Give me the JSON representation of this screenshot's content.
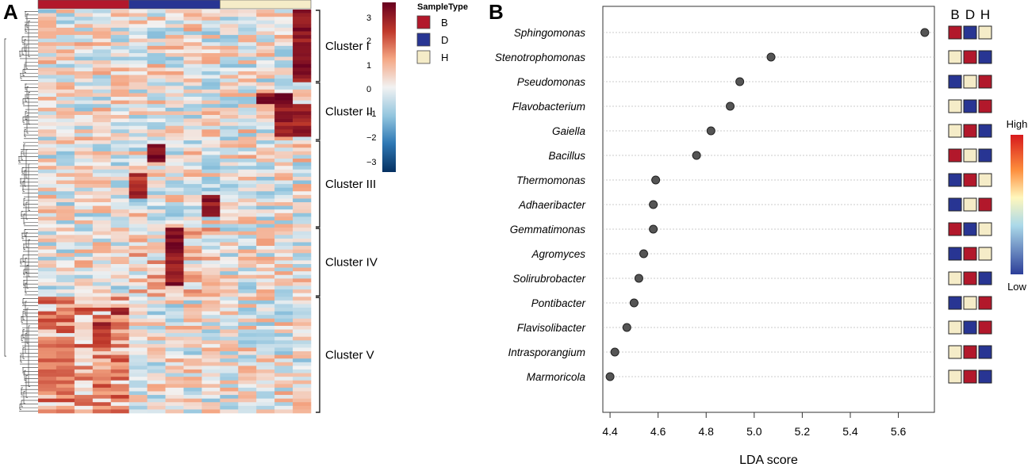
{
  "panels": {
    "a_label": "A",
    "b_label": "B"
  },
  "legend": {
    "title": "SampleType",
    "items": [
      {
        "label": "B",
        "color": "#b2182b"
      },
      {
        "label": "D",
        "color": "#283593"
      },
      {
        "label": "H",
        "color": "#f5ecc8"
      }
    ],
    "scale_ticks": [
      "3",
      "2",
      "1",
      "0",
      "−1",
      "−2",
      "−3"
    ]
  },
  "clusters": [
    "Cluster I",
    "Cluster II",
    "Cluster III",
    "Cluster IV",
    "Cluster V"
  ],
  "heat_scale": {
    "high_label": "High",
    "low_label": "Low"
  },
  "group_header": {
    "labels": [
      "B",
      "D",
      "H"
    ]
  },
  "colors": {
    "B": "#b2182b",
    "D": "#283593",
    "H": "#f5ecc8",
    "point": "#555555",
    "gridline": "#bbbbbb"
  },
  "chart_data": [
    {
      "type": "heatmap",
      "title": "",
      "columns_per_group": 5,
      "groups": [
        "B",
        "D",
        "H"
      ],
      "row_clusters": [
        {
          "name": "Cluster I",
          "rows": 20
        },
        {
          "name": "Cluster II",
          "rows": 16
        },
        {
          "name": "Cluster III",
          "rows": 24
        },
        {
          "name": "Cluster IV",
          "rows": 19
        },
        {
          "name": "Cluster V",
          "rows": 32
        }
      ],
      "value_range": [
        -3,
        3
      ]
    },
    {
      "type": "scatter",
      "title": "",
      "xlabel": "LDA score",
      "ylabel": "",
      "xlim": [
        4.37,
        5.75
      ],
      "xticks": [
        "4.4",
        "4.6",
        "4.8",
        "5.0",
        "5.2",
        "5.4",
        "5.6"
      ],
      "taxa": [
        {
          "name": "Sphingomonas",
          "lda": 5.71,
          "abundance": [
            "high",
            "low",
            "mid"
          ]
        },
        {
          "name": "Stenotrophomonas",
          "lda": 5.07,
          "abundance": [
            "mid",
            "high",
            "low"
          ]
        },
        {
          "name": "Pseudomonas",
          "lda": 4.94,
          "abundance": [
            "low",
            "mid",
            "high"
          ]
        },
        {
          "name": "Flavobacterium",
          "lda": 4.9,
          "abundance": [
            "mid",
            "low",
            "high"
          ]
        },
        {
          "name": "Gaiella",
          "lda": 4.82,
          "abundance": [
            "mid",
            "high",
            "low"
          ]
        },
        {
          "name": "Bacillus",
          "lda": 4.76,
          "abundance": [
            "high",
            "mid",
            "low"
          ]
        },
        {
          "name": "Thermomonas",
          "lda": 4.59,
          "abundance": [
            "low",
            "high",
            "mid"
          ]
        },
        {
          "name": "Adhaeribacter",
          "lda": 4.58,
          "abundance": [
            "low",
            "mid",
            "high"
          ]
        },
        {
          "name": "Gemmatimonas",
          "lda": 4.58,
          "abundance": [
            "high",
            "low",
            "mid"
          ]
        },
        {
          "name": "Agromyces",
          "lda": 4.54,
          "abundance": [
            "low",
            "high",
            "mid"
          ]
        },
        {
          "name": "Solirubrobacter",
          "lda": 4.52,
          "abundance": [
            "mid",
            "high",
            "low"
          ]
        },
        {
          "name": "Pontibacter",
          "lda": 4.5,
          "abundance": [
            "low",
            "mid",
            "high"
          ]
        },
        {
          "name": "Flavisolibacter",
          "lda": 4.47,
          "abundance": [
            "mid",
            "low",
            "high"
          ]
        },
        {
          "name": "Intrasporangium",
          "lda": 4.42,
          "abundance": [
            "mid",
            "high",
            "low"
          ]
        },
        {
          "name": "Marmoricola",
          "lda": 4.4,
          "abundance": [
            "mid",
            "high",
            "low"
          ]
        }
      ]
    }
  ]
}
